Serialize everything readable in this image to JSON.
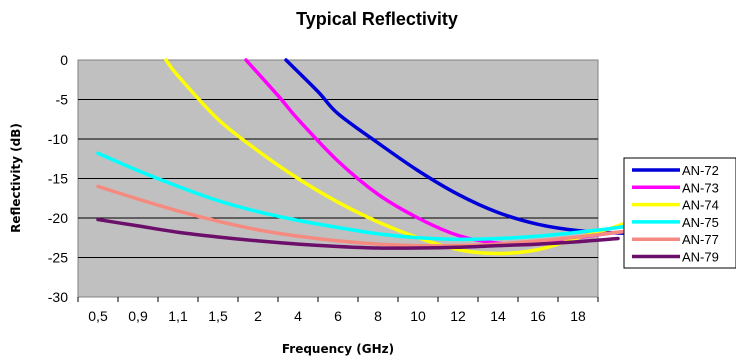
{
  "chart_data": {
    "type": "line",
    "title": "Typical Reflectivity",
    "xlabel": "Frequency (GHz)",
    "ylabel": "Reflectivity (dB)",
    "categories": [
      "0,5",
      "0,9",
      "1,1",
      "1,5",
      "2",
      "4",
      "6",
      "8",
      "10",
      "12",
      "14",
      "16",
      "18"
    ],
    "ylim": [
      -30,
      0
    ],
    "yticks": [
      0,
      -5,
      -10,
      -15,
      -20,
      -25,
      -30
    ],
    "grid": true,
    "legend_position": "right",
    "series": [
      {
        "name": "AN-72",
        "color": "#0000d8",
        "points": [
          [
            4.7,
            0
          ],
          [
            5.5,
            -4
          ],
          [
            6,
            -6.8
          ],
          [
            7,
            -10.5
          ],
          [
            8,
            -14
          ],
          [
            9,
            -17
          ],
          [
            10,
            -19.3
          ],
          [
            11,
            -20.8
          ],
          [
            12,
            -21.6
          ],
          [
            13,
            -21.9
          ],
          [
            14,
            -21.9
          ]
        ]
      },
      {
        "name": "AN-73",
        "color": "#ff00ff",
        "points": [
          [
            3.7,
            0
          ],
          [
            4.5,
            -4.5
          ],
          [
            5,
            -7.5
          ],
          [
            6,
            -12.8
          ],
          [
            7,
            -17
          ],
          [
            8,
            -20
          ],
          [
            9,
            -22.2
          ],
          [
            10,
            -23.2
          ],
          [
            11,
            -23.3
          ],
          [
            12,
            -22.5
          ],
          [
            13,
            -21.8
          ],
          [
            14,
            -21.4
          ]
        ]
      },
      {
        "name": "AN-74",
        "color": "#ffff00",
        "points": [
          [
            1.7,
            0
          ],
          [
            2,
            -2
          ],
          [
            3,
            -7.5
          ],
          [
            4,
            -11.5
          ],
          [
            5,
            -15
          ],
          [
            6,
            -18
          ],
          [
            7,
            -20.5
          ],
          [
            8,
            -22.5
          ],
          [
            9,
            -24
          ],
          [
            10,
            -24.5
          ],
          [
            11,
            -24
          ],
          [
            12,
            -22.5
          ],
          [
            13,
            -21
          ],
          [
            14,
            -19
          ]
        ]
      },
      {
        "name": "AN-75",
        "color": "#00ffff",
        "points": [
          [
            0,
            -11.8
          ],
          [
            1,
            -14
          ],
          [
            2,
            -16
          ],
          [
            3,
            -17.8
          ],
          [
            4,
            -19.2
          ],
          [
            5,
            -20.3
          ],
          [
            6,
            -21.2
          ],
          [
            7,
            -22
          ],
          [
            8,
            -22.5
          ],
          [
            9,
            -22.7
          ],
          [
            10,
            -22.6
          ],
          [
            11,
            -22.3
          ],
          [
            12,
            -21.8
          ],
          [
            13,
            -21.2
          ],
          [
            14,
            -20.3
          ]
        ]
      },
      {
        "name": "AN-77",
        "color": "#f58b80",
        "points": [
          [
            0,
            -16
          ],
          [
            1,
            -17.6
          ],
          [
            2,
            -19.1
          ],
          [
            3,
            -20.4
          ],
          [
            4,
            -21.5
          ],
          [
            5,
            -22.3
          ],
          [
            6,
            -22.9
          ],
          [
            7,
            -23.3
          ],
          [
            8,
            -23.5
          ],
          [
            9,
            -23.5
          ],
          [
            10,
            -23.3
          ],
          [
            11,
            -22.9
          ],
          [
            12,
            -22.4
          ],
          [
            13,
            -21.8
          ],
          [
            14,
            -21.3
          ]
        ]
      },
      {
        "name": "AN-79",
        "color": "#6b0f6b",
        "points": [
          [
            0,
            -20.2
          ],
          [
            1,
            -21
          ],
          [
            2,
            -21.8
          ],
          [
            3,
            -22.4
          ],
          [
            4,
            -22.9
          ],
          [
            5,
            -23.3
          ],
          [
            6,
            -23.6
          ],
          [
            7,
            -23.8
          ],
          [
            8,
            -23.8
          ],
          [
            9,
            -23.7
          ],
          [
            10,
            -23.5
          ],
          [
            11,
            -23.3
          ],
          [
            12,
            -23
          ],
          [
            13,
            -22.6
          ]
        ]
      }
    ]
  }
}
